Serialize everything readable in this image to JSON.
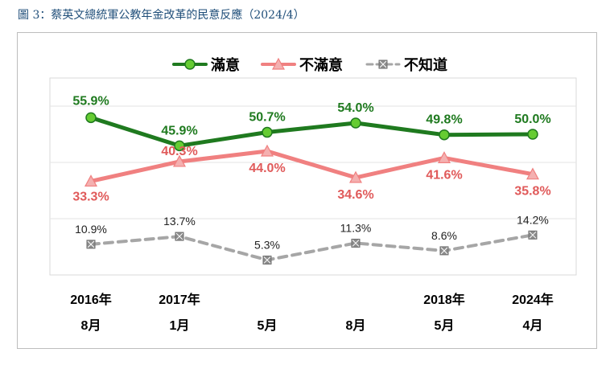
{
  "caption": "圖 3：蔡英文總統軍公教年金改革的民意反應（2024/4）",
  "chart_data": {
    "type": "line",
    "categories": [
      [
        "2016年",
        "8月"
      ],
      [
        "2017年",
        "1月"
      ],
      [
        "",
        "5月"
      ],
      [
        "",
        "8月"
      ],
      [
        "2018年",
        "5月"
      ],
      [
        "2024年",
        "4月"
      ]
    ],
    "ylim": [
      0,
      70
    ],
    "grid": true,
    "legend_position": "top",
    "series": [
      {
        "name": "滿意",
        "values": [
          55.9,
          45.9,
          50.7,
          54.0,
          49.8,
          50.0
        ],
        "labels": [
          "55.9%",
          "45.9%",
          "50.7%",
          "54.0%",
          "49.8%",
          "50.0%"
        ],
        "color": "#1f7a1f",
        "marker_fill": "#66cc33",
        "marker": "circle",
        "dashed": false
      },
      {
        "name": "不滿意",
        "values": [
          33.3,
          40.3,
          44.0,
          34.6,
          41.6,
          35.8
        ],
        "labels": [
          "33.3%",
          "40.3%",
          "44.0%",
          "34.6%",
          "41.6%",
          "35.8%"
        ],
        "color": "#f08080",
        "marker_fill": "#f4b0b0",
        "marker": "triangle",
        "dashed": false
      },
      {
        "name": "不知道",
        "values": [
          10.9,
          13.7,
          5.3,
          11.3,
          8.6,
          14.2
        ],
        "labels": [
          "10.9%",
          "13.7%",
          "5.3%",
          "11.3%",
          "8.6%",
          "14.2%"
        ],
        "color": "#a6a6a6",
        "marker_fill": "#8c8c8c",
        "marker": "square-x",
        "dashed": true
      }
    ]
  }
}
